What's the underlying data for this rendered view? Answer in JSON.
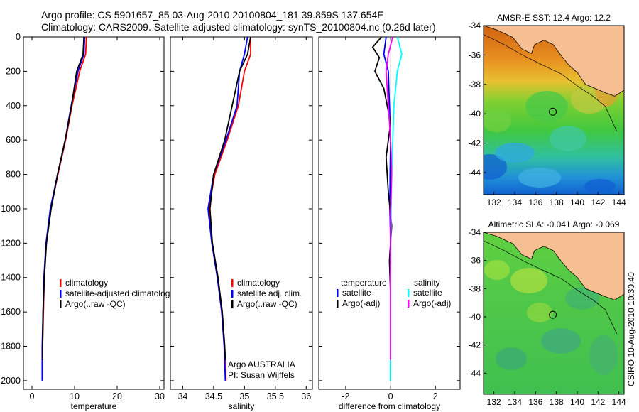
{
  "figure": {
    "title_line1": "Argo profile: CS 5901657_85 03-Aug-2010 20100804_181 39.859S 137.654E",
    "title_line2": "Climatology: CARS2009. Satellite-adjusted climatology: synTS_20100804.nc (0.26d later)",
    "credit": "CSIRO 10-Aug-2010 10:30:40",
    "agency_line1": "Argo AUSTRALIA",
    "agency_line2": "PI: Susan Wijffels"
  },
  "colors": {
    "climatology": "#ff0000",
    "satellite": "#0000ff",
    "argo": "#000000",
    "salinity_satellite": "#00ffff",
    "salinity_argo": "#ff00ff",
    "land": "#f6bf92"
  },
  "chart_data": [
    {
      "id": "temperature",
      "type": "line",
      "xlabel": "temperature",
      "xlim": [
        -2,
        31
      ],
      "ylim": [
        0,
        2050
      ],
      "y_inverted": true,
      "xticks": [
        0,
        10,
        20,
        30
      ],
      "yticks": [
        0,
        200,
        400,
        600,
        800,
        1000,
        1200,
        1400,
        1600,
        1800,
        2000
      ],
      "legend": [
        "climatology",
        "satellite-adjusted climatology",
        "Argo(..raw -QC)"
      ],
      "series": [
        {
          "name": "climatology",
          "depth": [
            0,
            100,
            200,
            400,
            600,
            800,
            1000,
            1200,
            1400,
            1600,
            1800,
            1880
          ],
          "values": [
            12.8,
            12.6,
            11.2,
            9.4,
            7.9,
            6.1,
            4.4,
            3.4,
            2.9,
            2.7,
            2.5,
            2.5
          ]
        },
        {
          "name": "satellite-adjusted climatology",
          "depth": [
            0,
            100,
            200,
            400,
            600,
            800,
            1000,
            1200,
            1400,
            1600,
            1800,
            2000
          ],
          "values": [
            12.4,
            12.2,
            10.8,
            9.2,
            7.8,
            6.0,
            4.3,
            3.3,
            2.8,
            2.6,
            2.4,
            2.4
          ]
        },
        {
          "name": "Argo(..raw -QC)",
          "depth": [
            0,
            100,
            200,
            400,
            600,
            800,
            1000,
            1200,
            1400,
            1600,
            1800,
            1880
          ],
          "values": [
            12.2,
            12.0,
            10.5,
            9.3,
            7.8,
            6.0,
            4.5,
            3.4,
            2.9,
            2.6,
            2.5,
            2.5
          ]
        }
      ]
    },
    {
      "id": "salinity",
      "type": "line",
      "xlabel": "salinity",
      "xlim": [
        33.8,
        36.1
      ],
      "ylim": [
        0,
        2050
      ],
      "y_inverted": true,
      "xticks": [
        34,
        34.5,
        35,
        35.5,
        36
      ],
      "legend": [
        "climatology",
        "satellite adj. clim.",
        "Argo(..raw -QC)"
      ],
      "series": [
        {
          "name": "climatology",
          "depth": [
            0,
            100,
            200,
            400,
            600,
            800,
            1000,
            1200,
            1400,
            1600,
            1800,
            2000
          ],
          "values": [
            35.1,
            35.1,
            35.0,
            34.9,
            34.72,
            34.52,
            34.42,
            34.48,
            34.57,
            34.64,
            34.68,
            34.7
          ]
        },
        {
          "name": "satellite adj. clim.",
          "depth": [
            0,
            100,
            200,
            400,
            600,
            800,
            1000,
            1200,
            1400,
            1600,
            1800,
            2000
          ],
          "values": [
            35.05,
            35.0,
            34.92,
            34.88,
            34.7,
            34.5,
            34.41,
            34.47,
            34.56,
            34.63,
            34.67,
            34.69
          ]
        },
        {
          "name": "Argo(..raw -QC)",
          "depth": [
            0,
            100,
            200,
            400,
            600,
            800,
            1000,
            1200,
            1400,
            1600,
            1800,
            1880
          ],
          "values": [
            35.1,
            35.05,
            34.92,
            34.8,
            34.68,
            34.5,
            34.44,
            34.48,
            34.57,
            34.64,
            34.68,
            34.69
          ]
        }
      ]
    },
    {
      "id": "difference",
      "type": "line",
      "xlabel": "difference from climatology",
      "xlim": [
        -3.2,
        3.1
      ],
      "ylim": [
        0,
        2050
      ],
      "y_inverted": true,
      "xticks": [
        -2,
        0,
        2
      ],
      "legend_headers": [
        "temperature",
        "salinity"
      ],
      "legend": [
        "satellite",
        "Argo(-adj)",
        "satellite",
        "Argo(-adj)"
      ],
      "series": [
        {
          "name": "temperature satellite",
          "depth": [
            0,
            100,
            200,
            400,
            600,
            800,
            1000,
            1200,
            1400,
            1600,
            1800,
            2000
          ],
          "values": [
            -0.2,
            -0.3,
            -0.1,
            -0.05,
            0.0,
            -0.02,
            -0.03,
            0.0,
            0.0,
            0.0,
            0.0,
            0.0
          ]
        },
        {
          "name": "temperature Argo(-adj)",
          "depth": [
            0,
            60,
            120,
            200,
            300,
            500,
            700,
            900,
            1100,
            1300,
            1500,
            1700,
            1880
          ],
          "values": [
            -0.4,
            -0.8,
            -0.5,
            -0.7,
            -0.3,
            0.0,
            -0.2,
            -0.1,
            0.05,
            -0.05,
            0.0,
            0.0,
            0.0
          ]
        },
        {
          "name": "salinity satellite",
          "depth": [
            0,
            100,
            200,
            400,
            600,
            800,
            1000,
            1200,
            1400,
            1600,
            1800,
            2000
          ],
          "values": [
            0.3,
            0.5,
            0.3,
            0.15,
            0.1,
            0.05,
            0.03,
            0.01,
            0.0,
            0.0,
            0.0,
            0.0
          ]
        },
        {
          "name": "salinity Argo(-adj)",
          "depth": [
            0,
            100,
            200,
            400,
            600,
            800,
            1000,
            1200,
            1400,
            1600,
            1800,
            1880
          ],
          "values": [
            0.1,
            -0.1,
            -0.2,
            -0.1,
            0.0,
            0.05,
            0.0,
            0.0,
            0.0,
            0.0,
            0.0,
            0.0
          ]
        }
      ]
    },
    {
      "id": "sst_map",
      "type": "heatmap",
      "title": "AMSR-E SST: 12.4  Argo: 12.2",
      "xlim": [
        131,
        144.5
      ],
      "ylim": [
        -45.5,
        -34
      ],
      "xticks": [
        132,
        134,
        136,
        138,
        140,
        142,
        144
      ],
      "yticks": [
        -34,
        -36,
        -38,
        -40,
        -42,
        -44
      ],
      "marker": {
        "lon": 137.654,
        "lat": -39.859
      }
    },
    {
      "id": "sla_map",
      "type": "heatmap",
      "title": "Altimetric SLA: -0.041  Argo: -0.069",
      "xlim": [
        131,
        144.5
      ],
      "ylim": [
        -45.5,
        -34
      ],
      "xticks": [
        132,
        134,
        136,
        138,
        140,
        142,
        144
      ],
      "yticks": [
        -34,
        -36,
        -38,
        -40,
        -42,
        -44
      ],
      "marker": {
        "lon": 137.654,
        "lat": -39.859
      }
    }
  ]
}
